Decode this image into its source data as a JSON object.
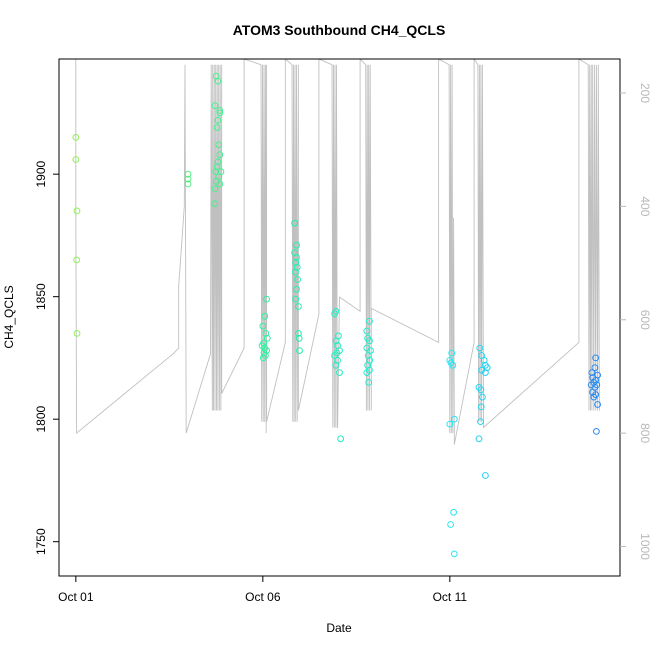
{
  "chart_data": {
    "type": "scatter",
    "title": "ATOM3 Southbound CH4_QCLS",
    "xlabel": "Date",
    "ylabel": "CH4_QCLS",
    "x_ticks": [
      "Oct 01",
      "Oct 06",
      "Oct 11"
    ],
    "x_tick_days": [
      1,
      6,
      11
    ],
    "xlim": [
      0.55,
      15.55
    ],
    "y_ticks": [
      1750,
      1800,
      1850,
      1900
    ],
    "ylim": [
      1736,
      1947
    ],
    "y2_ticks": [
      200,
      400,
      600,
      800,
      1000
    ],
    "y2lim": [
      1052,
      140
    ],
    "colors": {
      "start": "#90ee5a",
      "mid": "#1ff0b0",
      "cyan": "#28e8f2",
      "end": "#2a88f0",
      "line": "#c0c0c0",
      "right_axis": "#b8b8b8"
    },
    "points": [
      {
        "day": 1.0,
        "ch4": 1915
      },
      {
        "day": 1.0,
        "ch4": 1906
      },
      {
        "day": 1.03,
        "ch4": 1885
      },
      {
        "day": 1.02,
        "ch4": 1865
      },
      {
        "day": 1.03,
        "ch4": 1835
      },
      {
        "day": 4.0,
        "ch4": 1900
      },
      {
        "day": 4.0,
        "ch4": 1898
      },
      {
        "day": 4.0,
        "ch4": 1896
      },
      {
        "day": 4.75,
        "ch4": 1940
      },
      {
        "day": 4.8,
        "ch4": 1938
      },
      {
        "day": 4.72,
        "ch4": 1928
      },
      {
        "day": 4.85,
        "ch4": 1926
      },
      {
        "day": 4.8,
        "ch4": 1922
      },
      {
        "day": 4.78,
        "ch4": 1919
      },
      {
        "day": 4.82,
        "ch4": 1912
      },
      {
        "day": 4.85,
        "ch4": 1908
      },
      {
        "day": 4.8,
        "ch4": 1905
      },
      {
        "day": 4.78,
        "ch4": 1903
      },
      {
        "day": 4.74,
        "ch4": 1901
      },
      {
        "day": 4.88,
        "ch4": 1901
      },
      {
        "day": 4.82,
        "ch4": 1899
      },
      {
        "day": 4.75,
        "ch4": 1897
      },
      {
        "day": 4.85,
        "ch4": 1896
      },
      {
        "day": 4.72,
        "ch4": 1894
      },
      {
        "day": 4.71,
        "ch4": 1888
      },
      {
        "day": 4.85,
        "ch4": 1925
      },
      {
        "day": 6.1,
        "ch4": 1849
      },
      {
        "day": 6.05,
        "ch4": 1842
      },
      {
        "day": 6.0,
        "ch4": 1838
      },
      {
        "day": 6.08,
        "ch4": 1835
      },
      {
        "day": 6.12,
        "ch4": 1833
      },
      {
        "day": 6.02,
        "ch4": 1831
      },
      {
        "day": 5.98,
        "ch4": 1830
      },
      {
        "day": 6.05,
        "ch4": 1829
      },
      {
        "day": 6.1,
        "ch4": 1828
      },
      {
        "day": 6.03,
        "ch4": 1827
      },
      {
        "day": 6.07,
        "ch4": 1826
      },
      {
        "day": 6.01,
        "ch4": 1825
      },
      {
        "day": 6.85,
        "ch4": 1880
      },
      {
        "day": 6.9,
        "ch4": 1871
      },
      {
        "day": 6.85,
        "ch4": 1868
      },
      {
        "day": 6.9,
        "ch4": 1866
      },
      {
        "day": 6.88,
        "ch4": 1864
      },
      {
        "day": 6.92,
        "ch4": 1862
      },
      {
        "day": 6.87,
        "ch4": 1860
      },
      {
        "day": 6.93,
        "ch4": 1857
      },
      {
        "day": 6.9,
        "ch4": 1853
      },
      {
        "day": 6.88,
        "ch4": 1849
      },
      {
        "day": 6.95,
        "ch4": 1846
      },
      {
        "day": 6.95,
        "ch4": 1835
      },
      {
        "day": 6.97,
        "ch4": 1833
      },
      {
        "day": 6.98,
        "ch4": 1828
      },
      {
        "day": 7.95,
        "ch4": 1844
      },
      {
        "day": 7.92,
        "ch4": 1843
      },
      {
        "day": 8.02,
        "ch4": 1834
      },
      {
        "day": 7.96,
        "ch4": 1832
      },
      {
        "day": 8.0,
        "ch4": 1830
      },
      {
        "day": 8.05,
        "ch4": 1828
      },
      {
        "day": 7.98,
        "ch4": 1827
      },
      {
        "day": 7.92,
        "ch4": 1826
      },
      {
        "day": 8.0,
        "ch4": 1824
      },
      {
        "day": 7.95,
        "ch4": 1822
      },
      {
        "day": 8.05,
        "ch4": 1819
      },
      {
        "day": 8.08,
        "ch4": 1792
      },
      {
        "day": 8.85,
        "ch4": 1840
      },
      {
        "day": 8.78,
        "ch4": 1836
      },
      {
        "day": 8.8,
        "ch4": 1833
      },
      {
        "day": 8.85,
        "ch4": 1832
      },
      {
        "day": 8.78,
        "ch4": 1829
      },
      {
        "day": 8.88,
        "ch4": 1828
      },
      {
        "day": 8.82,
        "ch4": 1826
      },
      {
        "day": 8.86,
        "ch4": 1824
      },
      {
        "day": 8.8,
        "ch4": 1822
      },
      {
        "day": 8.85,
        "ch4": 1820
      },
      {
        "day": 8.78,
        "ch4": 1819
      },
      {
        "day": 8.83,
        "ch4": 1815
      },
      {
        "day": 11.05,
        "ch4": 1827
      },
      {
        "day": 11.0,
        "ch4": 1824
      },
      {
        "day": 11.08,
        "ch4": 1822
      },
      {
        "day": 11.03,
        "ch4": 1823
      },
      {
        "day": 11.12,
        "ch4": 1800
      },
      {
        "day": 11.0,
        "ch4": 1798
      },
      {
        "day": 11.1,
        "ch4": 1762
      },
      {
        "day": 11.02,
        "ch4": 1757
      },
      {
        "day": 11.12,
        "ch4": 1745
      },
      {
        "day": 11.8,
        "ch4": 1829
      },
      {
        "day": 11.85,
        "ch4": 1826
      },
      {
        "day": 11.92,
        "ch4": 1824
      },
      {
        "day": 11.95,
        "ch4": 1822
      },
      {
        "day": 12.0,
        "ch4": 1821
      },
      {
        "day": 11.85,
        "ch4": 1820
      },
      {
        "day": 11.95,
        "ch4": 1819
      },
      {
        "day": 11.78,
        "ch4": 1813
      },
      {
        "day": 11.83,
        "ch4": 1812
      },
      {
        "day": 11.87,
        "ch4": 1809
      },
      {
        "day": 11.84,
        "ch4": 1805
      },
      {
        "day": 11.82,
        "ch4": 1799
      },
      {
        "day": 11.78,
        "ch4": 1792
      },
      {
        "day": 11.95,
        "ch4": 1777
      },
      {
        "day": 14.9,
        "ch4": 1825
      },
      {
        "day": 14.88,
        "ch4": 1821
      },
      {
        "day": 14.8,
        "ch4": 1819
      },
      {
        "day": 14.95,
        "ch4": 1818
      },
      {
        "day": 14.82,
        "ch4": 1817
      },
      {
        "day": 14.9,
        "ch4": 1816
      },
      {
        "day": 14.85,
        "ch4": 1815
      },
      {
        "day": 14.78,
        "ch4": 1814
      },
      {
        "day": 14.93,
        "ch4": 1814
      },
      {
        "day": 14.88,
        "ch4": 1813
      },
      {
        "day": 14.82,
        "ch4": 1811
      },
      {
        "day": 14.9,
        "ch4": 1810
      },
      {
        "day": 14.85,
        "ch4": 1809
      },
      {
        "day": 14.95,
        "ch4": 1806
      },
      {
        "day": 14.92,
        "ch4": 1795
      }
    ],
    "pressure_path": [
      [
        1.0,
        140
      ],
      [
        1.0,
        400
      ],
      [
        1.02,
        800
      ],
      [
        3.6,
        660
      ],
      [
        3.75,
        650
      ],
      [
        3.75,
        540
      ],
      [
        3.9,
        400
      ],
      [
        3.92,
        150
      ],
      [
        3.95,
        800
      ],
      [
        4.6,
        660
      ],
      [
        4.62,
        150
      ],
      [
        4.65,
        760
      ],
      [
        4.66,
        150
      ],
      [
        4.68,
        760
      ],
      [
        4.7,
        150
      ],
      [
        4.72,
        760
      ],
      [
        4.74,
        150
      ],
      [
        4.76,
        760
      ],
      [
        4.78,
        150
      ],
      [
        4.8,
        760
      ],
      [
        4.82,
        150
      ],
      [
        4.84,
        760
      ],
      [
        4.86,
        150
      ],
      [
        4.88,
        760
      ],
      [
        4.9,
        150
      ],
      [
        4.9,
        730
      ],
      [
        5.5,
        650
      ],
      [
        5.5,
        140
      ],
      [
        5.95,
        150
      ],
      [
        5.97,
        780
      ],
      [
        5.99,
        150
      ],
      [
        6.01,
        780
      ],
      [
        6.03,
        150
      ],
      [
        6.05,
        780
      ],
      [
        6.07,
        150
      ],
      [
        6.09,
        800
      ],
      [
        6.1,
        150
      ],
      [
        6.1,
        780
      ],
      [
        6.6,
        640
      ],
      [
        6.6,
        140
      ],
      [
        6.78,
        150
      ],
      [
        6.8,
        780
      ],
      [
        6.82,
        150
      ],
      [
        6.84,
        780
      ],
      [
        6.86,
        150
      ],
      [
        6.88,
        780
      ],
      [
        6.9,
        150
      ],
      [
        6.92,
        780
      ],
      [
        6.95,
        150
      ],
      [
        6.95,
        760
      ],
      [
        7.5,
        590
      ],
      [
        7.5,
        140
      ],
      [
        7.85,
        150
      ],
      [
        7.87,
        790
      ],
      [
        7.89,
        150
      ],
      [
        7.91,
        790
      ],
      [
        7.93,
        150
      ],
      [
        7.95,
        790
      ],
      [
        7.97,
        150
      ],
      [
        7.99,
        790
      ],
      [
        8.0,
        790
      ],
      [
        8.05,
        560
      ],
      [
        8.6,
        585
      ],
      [
        8.6,
        140
      ],
      [
        8.75,
        150
      ],
      [
        8.77,
        760
      ],
      [
        8.79,
        150
      ],
      [
        8.81,
        760
      ],
      [
        8.83,
        150
      ],
      [
        8.85,
        760
      ],
      [
        8.87,
        150
      ],
      [
        8.9,
        760
      ],
      [
        8.9,
        580
      ],
      [
        10.7,
        640
      ],
      [
        10.7,
        140
      ],
      [
        10.98,
        150
      ],
      [
        11.0,
        800
      ],
      [
        11.02,
        150
      ],
      [
        11.04,
        800
      ],
      [
        11.06,
        150
      ],
      [
        11.08,
        800
      ],
      [
        11.1,
        420
      ],
      [
        11.12,
        800
      ],
      [
        11.12,
        820
      ],
      [
        11.65,
        640
      ],
      [
        11.65,
        140
      ],
      [
        11.75,
        150
      ],
      [
        11.77,
        780
      ],
      [
        11.79,
        150
      ],
      [
        11.81,
        780
      ],
      [
        11.83,
        150
      ],
      [
        11.85,
        780
      ],
      [
        11.87,
        150
      ],
      [
        11.9,
        780
      ],
      [
        11.9,
        790
      ],
      [
        14.45,
        640
      ],
      [
        14.45,
        140
      ],
      [
        14.7,
        150
      ],
      [
        14.72,
        760
      ],
      [
        14.74,
        150
      ],
      [
        14.76,
        760
      ],
      [
        14.78,
        150
      ],
      [
        14.8,
        760
      ],
      [
        14.82,
        150
      ],
      [
        14.85,
        760
      ],
      [
        14.87,
        150
      ],
      [
        14.9,
        760
      ],
      [
        14.92,
        150
      ],
      [
        14.95,
        760
      ],
      [
        14.97,
        150
      ],
      [
        15.0,
        760
      ]
    ]
  }
}
